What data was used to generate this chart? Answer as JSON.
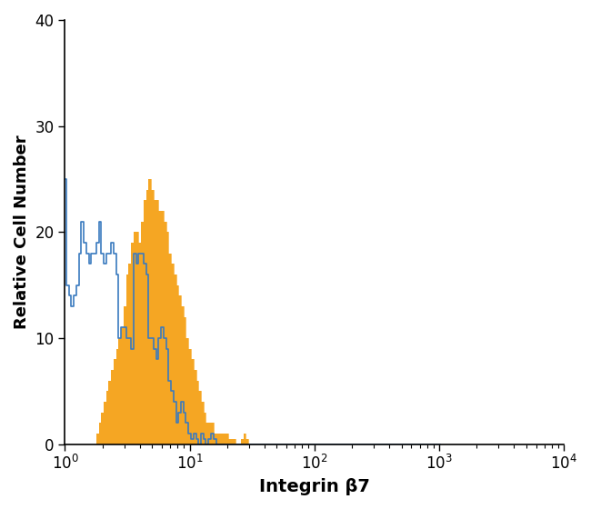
{
  "title": "",
  "xlabel": "Integrin β7",
  "ylabel": "Relative Cell Number",
  "xlim_log": [
    1,
    10000
  ],
  "ylim": [
    0,
    40
  ],
  "yticks": [
    0,
    10,
    20,
    30,
    40
  ],
  "background_color": "#ffffff",
  "blue_color": "#3a7abf",
  "orange_color": "#f5a623",
  "blue_data_x": [
    1.0,
    1.05,
    1.1,
    1.15,
    1.2,
    1.26,
    1.32,
    1.38,
    1.45,
    1.52,
    1.59,
    1.66,
    1.74,
    1.82,
    1.91,
    2.0,
    2.09,
    2.19,
    2.29,
    2.4,
    2.51,
    2.63,
    2.75,
    2.88,
    3.02,
    3.16,
    3.31,
    3.47,
    3.63,
    3.8,
    3.98,
    4.17,
    4.37,
    4.57,
    4.79,
    5.01,
    5.25,
    5.5,
    5.75,
    6.03,
    6.31,
    6.61,
    6.92,
    7.24,
    7.59,
    7.94,
    8.32,
    8.71,
    9.12,
    9.55,
    10.0,
    10.5,
    11.0,
    11.5,
    12.0,
    12.6,
    13.2,
    13.8,
    14.5,
    15.2,
    15.9,
    16.6,
    17.4,
    18.2,
    19.1,
    20.0,
    21.0,
    22.0,
    23.0,
    24.0,
    25.1,
    26.3,
    27.5,
    28.8,
    30.2,
    31.6,
    33.1,
    34.7,
    36.3,
    38.0,
    39.8,
    41.7,
    43.7,
    45.7,
    47.9,
    50.1,
    52.5,
    54.9,
    57.5,
    60.3,
    63.1,
    66.1,
    69.2,
    72.4,
    75.9,
    79.4,
    83.2,
    87.1,
    91.2,
    95.5,
    100.0,
    104.7,
    109.6,
    114.8,
    120.2,
    125.9,
    131.8,
    138.0,
    144.5,
    151.4,
    158.5,
    165.9,
    173.8,
    181.9,
    190.5,
    199.5,
    209.0,
    218.8,
    229.1,
    239.9,
    251.2,
    263.0,
    275.4,
    288.4,
    301.9,
    316.2,
    331.1,
    346.7,
    363.1,
    380.2,
    398.1,
    416.9,
    436.5,
    457.1,
    478.6,
    501.2,
    524.8,
    549.5,
    575.4,
    602.6,
    630.9,
    660.7,
    691.8,
    724.4,
    758.6,
    794.3,
    831.8,
    870.9,
    912.0,
    954.9,
    1000.0
  ],
  "blue_data_y": [
    25,
    15,
    14,
    13,
    14,
    15,
    18,
    21,
    19,
    18,
    17,
    18,
    18,
    19,
    21,
    18,
    17,
    18,
    18,
    19,
    18,
    16,
    10,
    11,
    11,
    10,
    10,
    9,
    18,
    17,
    18,
    18,
    17,
    16,
    10,
    10,
    9,
    8,
    10,
    11,
    10,
    9,
    6,
    5,
    4,
    2,
    3,
    4,
    3,
    2,
    1,
    0.5,
    1,
    0.5,
    0,
    1,
    0.5,
    0,
    0.5,
    1,
    0.5,
    0,
    0,
    0,
    0,
    0,
    0,
    0,
    0,
    0,
    0,
    0,
    0,
    0,
    0,
    0,
    0,
    0,
    0,
    0,
    0,
    0,
    0,
    0,
    0,
    0,
    0,
    0,
    0,
    0,
    0,
    0,
    0,
    0,
    0,
    0,
    0,
    0,
    0,
    0,
    0,
    0,
    0,
    0,
    0,
    0,
    0,
    0,
    0,
    0,
    0,
    0,
    0,
    0,
    0,
    0,
    0,
    0,
    0,
    0,
    0,
    0,
    0,
    0,
    0,
    0,
    0,
    0,
    0,
    0,
    0,
    0,
    0,
    0,
    0,
    0,
    0,
    0,
    0,
    0,
    0,
    0,
    0
  ],
  "orange_data_x": [
    1.0,
    1.05,
    1.1,
    1.15,
    1.2,
    1.26,
    1.32,
    1.38,
    1.45,
    1.52,
    1.59,
    1.66,
    1.74,
    1.82,
    1.91,
    2.0,
    2.09,
    2.19,
    2.29,
    2.4,
    2.51,
    2.63,
    2.75,
    2.88,
    3.02,
    3.16,
    3.31,
    3.47,
    3.63,
    3.8,
    3.98,
    4.17,
    4.37,
    4.57,
    4.79,
    5.01,
    5.25,
    5.5,
    5.75,
    6.03,
    6.31,
    6.61,
    6.92,
    7.24,
    7.59,
    7.94,
    8.32,
    8.71,
    9.12,
    9.55,
    10.0,
    10.5,
    11.0,
    11.5,
    12.0,
    12.6,
    13.2,
    13.8,
    14.5,
    15.2,
    15.9,
    16.6,
    17.4,
    18.2,
    19.1,
    20.0,
    21.0,
    22.0,
    23.0,
    24.0,
    25.1,
    26.3,
    27.5,
    28.8,
    30.2,
    31.6,
    33.1,
    34.7,
    36.3,
    38.0,
    39.8,
    41.7,
    43.7,
    45.7,
    47.9,
    50.1,
    52.5,
    54.9,
    57.5,
    60.3,
    63.1,
    66.1,
    69.2,
    72.4,
    75.9,
    79.4,
    83.2,
    87.1,
    91.2,
    95.5,
    100.0,
    104.7,
    109.6,
    114.8,
    120.2,
    125.9,
    131.8,
    138.0,
    144.5,
    151.4,
    158.5,
    165.9,
    173.8,
    181.9,
    190.5,
    199.5,
    209.0,
    218.8,
    229.1,
    239.9,
    251.2,
    263.0,
    275.4,
    288.4,
    301.9,
    316.2,
    331.1,
    346.7,
    363.1,
    380.2,
    398.1,
    416.9,
    436.5,
    457.1,
    478.6,
    501.2,
    524.8,
    549.5,
    575.4,
    602.6,
    630.9,
    660.7,
    691.8,
    724.4,
    758.6,
    794.3,
    831.8,
    870.9,
    912.0,
    954.9,
    1000.0
  ],
  "orange_data_y": [
    0,
    0,
    0,
    0,
    0,
    0,
    0,
    0,
    0,
    0,
    0,
    0,
    0,
    1,
    2,
    3,
    4,
    5,
    6,
    7,
    8,
    9,
    10,
    11,
    13,
    16,
    17,
    19,
    20,
    20,
    19,
    21,
    23,
    24,
    25,
    24,
    23,
    23,
    22,
    22,
    21,
    20,
    18,
    17,
    16,
    15,
    14,
    13,
    12,
    10,
    9,
    8,
    7,
    6,
    5,
    4,
    3,
    2,
    2,
    2,
    1,
    1,
    1,
    1,
    1,
    1,
    0.5,
    0.5,
    0.5,
    0,
    0,
    0.5,
    1,
    0.5,
    0,
    0,
    0,
    0,
    0,
    0,
    0,
    0,
    0,
    0,
    0,
    0,
    0,
    0,
    0,
    0,
    0,
    0,
    0,
    0,
    0,
    0,
    0,
    0,
    0,
    0,
    0,
    0,
    0,
    0,
    0,
    0,
    0,
    0,
    0,
    0,
    0,
    0,
    0,
    0,
    0,
    0,
    0,
    0,
    0,
    0,
    0,
    0,
    0,
    0,
    0,
    0,
    0,
    0,
    0,
    0,
    0,
    0,
    0,
    0,
    0,
    0,
    0,
    0,
    0,
    0,
    0,
    0,
    0,
    0,
    0,
    0
  ]
}
